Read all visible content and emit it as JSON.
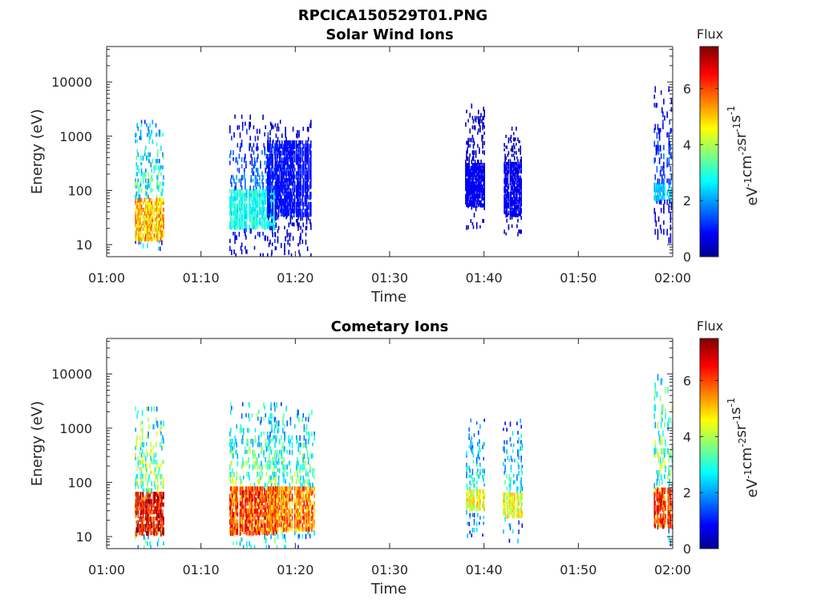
{
  "figure": {
    "title": "RPCICA150529T01.PNG"
  },
  "chart_data": [
    {
      "type": "heatmap",
      "title": "Solar Wind Ions",
      "xlabel": "Time",
      "ylabel": "Energy (eV)",
      "x_ticks": [
        "01:00",
        "01:10",
        "01:20",
        "01:30",
        "01:40",
        "01:50",
        "02:00"
      ],
      "xlim": [
        "01:00",
        "02:00"
      ],
      "y_scale": "log",
      "ylim": [
        6,
        45000
      ],
      "y_ticks": [
        {
          "value": 10,
          "label": "10"
        },
        {
          "value": 100,
          "label": "100"
        },
        {
          "value": 1000,
          "label": "1000"
        },
        {
          "value": 10000,
          "label": "10000"
        }
      ],
      "colorbar": {
        "title": "Flux",
        "label": "eV-1cm-2sr-1s-1",
        "range": [
          0,
          7.5
        ],
        "ticks": [
          0,
          2,
          4,
          6
        ],
        "colormap": "jet"
      },
      "bursts": [
        {
          "start": "01:03",
          "end": "01:06",
          "e_low": 8,
          "e_high": 2000,
          "intensity": "low-mid",
          "core": [
            12,
            70,
            5.5
          ]
        },
        {
          "start": "01:13",
          "end": "01:18",
          "e_low": 6,
          "e_high": 2500,
          "intensity": "low",
          "core": [
            20,
            100,
            3
          ]
        },
        {
          "start": "01:17",
          "end": "01:22",
          "e_low": 6,
          "e_high": 2000,
          "intensity": "low",
          "core": [
            30,
            800,
            1
          ]
        },
        {
          "start": "01:38",
          "end": "01:40",
          "e_low": 20,
          "e_high": 4000,
          "intensity": "low",
          "core": [
            50,
            300,
            0.8
          ]
        },
        {
          "start": "01:42",
          "end": "01:44",
          "e_low": 15,
          "e_high": 1500,
          "intensity": "low",
          "core": [
            30,
            300,
            0.8
          ]
        },
        {
          "start": "01:58",
          "end": "02:00",
          "e_low": 8,
          "e_high": 10000,
          "intensity": "low",
          "core": [
            60,
            120,
            2.5
          ]
        }
      ]
    },
    {
      "type": "heatmap",
      "title": "Cometary Ions",
      "xlabel": "Time",
      "ylabel": "Energy (eV)",
      "x_ticks": [
        "01:00",
        "01:10",
        "01:20",
        "01:30",
        "01:40",
        "01:50",
        "02:00"
      ],
      "xlim": [
        "01:00",
        "02:00"
      ],
      "y_scale": "log",
      "ylim": [
        6,
        45000
      ],
      "y_ticks": [
        {
          "value": 10,
          "label": "10"
        },
        {
          "value": 100,
          "label": "100"
        },
        {
          "value": 1000,
          "label": "1000"
        },
        {
          "value": 10000,
          "label": "10000"
        }
      ],
      "colorbar": {
        "title": "Flux",
        "label": "eV-1cm-2sr-1s-1",
        "range": [
          0,
          7.5
        ],
        "ticks": [
          0,
          2,
          4,
          6
        ],
        "colormap": "jet"
      },
      "bursts": [
        {
          "start": "01:03",
          "end": "01:06",
          "e_low": 6,
          "e_high": 2500,
          "intensity": "high",
          "core": [
            10,
            60,
            7
          ]
        },
        {
          "start": "01:13",
          "end": "01:18",
          "e_low": 6,
          "e_high": 3000,
          "intensity": "high",
          "core": [
            10,
            80,
            6.5
          ]
        },
        {
          "start": "01:17",
          "end": "01:22",
          "e_low": 6,
          "e_high": 3000,
          "intensity": "high",
          "core": [
            12,
            80,
            6
          ]
        },
        {
          "start": "01:38",
          "end": "01:40",
          "e_low": 10,
          "e_high": 1500,
          "intensity": "mid",
          "core": [
            30,
            70,
            4.8
          ]
        },
        {
          "start": "01:42",
          "end": "01:44",
          "e_low": 8,
          "e_high": 1500,
          "intensity": "mid",
          "core": [
            20,
            60,
            4.8
          ]
        },
        {
          "start": "01:58",
          "end": "02:00",
          "e_low": 6,
          "e_high": 10000,
          "intensity": "high",
          "core": [
            15,
            70,
            6.5
          ]
        }
      ]
    }
  ]
}
